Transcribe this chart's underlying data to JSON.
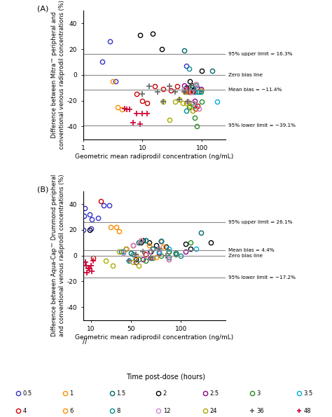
{
  "panel_A": {
    "ylabel": "Difference between Mitra™ peripheral and\nconventional venous radiprodil concentrations (%)",
    "xlabel": "Geometric mean radiprodil concentration (ng/mL)",
    "ylim": [
      -50,
      50
    ],
    "upper_limit": 16.3,
    "lower_limit": -39.1,
    "mean_bias": -11.4,
    "upper_label": "95% upper limit = 16.3%",
    "lower_label": "95% lower limit = −39.1%",
    "mean_label": "Mean bias = −11.4%",
    "zero_label": "Zero bias line",
    "yticks": [
      -40,
      -20,
      0,
      20,
      40
    ]
  },
  "panel_B": {
    "ylabel": "Difference between Aqua-Cap™ Drummond peripheral\nand conventional venous radiprodil concentrations (%)",
    "xlabel": "Geometric mean radiprodil concentration (ng/mL)",
    "ylim": [
      -50,
      50
    ],
    "upper_limit": 26.1,
    "lower_limit": -17.2,
    "mean_bias": 4.4,
    "upper_label": "95% upper limit = 26.1%",
    "lower_label": "95% lower limit = −17.2%",
    "mean_label": "Mean bias = 4.4%",
    "zero_label": "Zero bias line",
    "yticks": [
      -40,
      -20,
      0,
      20,
      40
    ],
    "xticks": [
      10,
      50,
      100
    ]
  },
  "time_colors": {
    "0.5": "#3333cc",
    "1": "#ff8c00",
    "1.5": "#006666",
    "2": "#000000",
    "2.5": "#8b008b",
    "3": "#228b22",
    "3.5": "#00aadd",
    "4": "#cc0000",
    "6": "#ff8c00",
    "8": "#008b8b",
    "12": "#cc88cc",
    "24": "#aaaa00",
    "36": "#666666",
    "48": "#cc0033"
  },
  "legend_title": "Time post-dose (hours)",
  "panel_A_scatter": [
    {
      "t": "0.5",
      "x": [
        2.1,
        2.8,
        3.5
      ],
      "y": [
        10,
        26,
        -5
      ]
    },
    {
      "t": "1",
      "x": [
        3.2,
        3.8,
        4.5
      ],
      "y": [
        -5,
        -25,
        -27
      ]
    },
    {
      "t": "0.5",
      "x": [
        55
      ],
      "y": [
        7
      ]
    },
    {
      "t": "1.5",
      "x": [
        50,
        150
      ],
      "y": [
        19,
        3
      ]
    },
    {
      "t": "2",
      "x": [
        9.0,
        15,
        21,
        55,
        62,
        68,
        72,
        100
      ],
      "y": [
        31,
        32,
        20,
        -10,
        -5,
        -8,
        -12,
        3
      ]
    },
    {
      "t": "2.5",
      "x": [
        50,
        55,
        62,
        75,
        82,
        95
      ],
      "y": [
        -8,
        -12,
        -13,
        -20,
        -10,
        -11
      ]
    },
    {
      "t": "3",
      "x": [
        55,
        60,
        68,
        75,
        82,
        100
      ],
      "y": [
        -13,
        -25,
        -22,
        -33,
        -40,
        -21
      ]
    },
    {
      "t": "3.5",
      "x": [
        75,
        85,
        95,
        180
      ],
      "y": [
        -24,
        -13,
        -12,
        -21
      ]
    },
    {
      "t": "4",
      "x": [
        8,
        10,
        12,
        16,
        22,
        30,
        38,
        55,
        62,
        70,
        78,
        85
      ],
      "y": [
        -15,
        -20,
        -22,
        -9,
        -11,
        -12,
        -9,
        -11,
        -13,
        -13,
        -26,
        -24
      ]
    },
    {
      "t": "6",
      "x": [
        52,
        58,
        65,
        72,
        80,
        88,
        95
      ],
      "y": [
        -13,
        -21,
        -13,
        -22,
        -7,
        -26,
        -12
      ]
    },
    {
      "t": "8",
      "x": [
        50,
        55,
        60,
        68,
        75,
        80,
        88,
        95
      ],
      "y": [
        -11,
        -28,
        5,
        -10,
        -13,
        -8,
        -13,
        -13
      ]
    },
    {
      "t": "12",
      "x": [
        50,
        58,
        65,
        72,
        80,
        88
      ],
      "y": [
        -11,
        -21,
        -13,
        -22,
        -7,
        -26
      ]
    },
    {
      "t": "24",
      "x": [
        22,
        28,
        35,
        42,
        48,
        55,
        62,
        70
      ],
      "y": [
        -21,
        -35,
        -21,
        -19,
        -22,
        -22,
        -24,
        -28
      ]
    },
    {
      "t": "36",
      "x": [
        10,
        13,
        18,
        22,
        28,
        35,
        42,
        50,
        58,
        65
      ],
      "y": [
        -15,
        -9,
        -13,
        -21,
        -9,
        -13,
        -19,
        -13,
        -21,
        -8
      ]
    },
    {
      "t": "48",
      "x": [
        5.0,
        5.5,
        6.0,
        7.0,
        8.0,
        9.0,
        10,
        12
      ],
      "y": [
        -26,
        -27,
        -27,
        -37,
        -30,
        -38,
        -30,
        -30
      ]
    }
  ],
  "panel_B_scatter": [
    {
      "t": "0.5",
      "x": [
        2.5,
        3.0,
        3.5,
        8.5,
        10,
        11,
        17,
        23,
        28
      ],
      "y": [
        20,
        31,
        37,
        32,
        21,
        28,
        29,
        39,
        39
      ]
    },
    {
      "t": "1",
      "x": [
        30,
        35,
        38
      ],
      "y": [
        22,
        22,
        19
      ]
    },
    {
      "t": "1.5",
      "x": [
        40,
        50,
        120
      ],
      "y": [
        3,
        2,
        18
      ]
    },
    {
      "t": "2",
      "x": [
        9,
        55,
        60,
        62,
        65,
        68,
        70,
        75,
        80,
        85,
        105,
        110,
        130
      ],
      "y": [
        20,
        -3,
        10,
        12,
        12,
        10,
        3,
        8,
        11,
        7,
        9,
        5,
        10
      ]
    },
    {
      "t": "2.5",
      "x": [
        55,
        62,
        70,
        78,
        88,
        95,
        105
      ],
      "y": [
        -5,
        -3,
        -2,
        2,
        3,
        2,
        3
      ]
    },
    {
      "t": "3",
      "x": [
        58,
        65,
        72,
        80,
        88,
        95,
        110
      ],
      "y": [
        -3,
        -4,
        -2,
        0,
        3,
        1,
        10
      ]
    },
    {
      "t": "3.5",
      "x": [
        78,
        88,
        95,
        115
      ],
      "y": [
        3,
        5,
        2,
        5
      ]
    },
    {
      "t": "4",
      "x": [
        12,
        20,
        45,
        52,
        58,
        65,
        72,
        80,
        88
      ],
      "y": [
        -2,
        42,
        5,
        8,
        10,
        1,
        5,
        11,
        -3
      ]
    },
    {
      "t": "6",
      "x": [
        55,
        60,
        68,
        75,
        82,
        95
      ],
      "y": [
        0,
        12,
        8,
        -1,
        7,
        2
      ]
    },
    {
      "t": "8",
      "x": [
        42,
        48,
        52,
        58,
        65,
        72,
        80,
        88,
        95,
        100
      ],
      "y": [
        3,
        -4,
        1,
        10,
        12,
        5,
        11,
        -1,
        2,
        0
      ]
    },
    {
      "t": "12",
      "x": [
        42,
        52,
        60,
        68,
        78,
        88
      ],
      "y": [
        2,
        8,
        12,
        3,
        5,
        -3
      ]
    },
    {
      "t": "24",
      "x": [
        25,
        32,
        38,
        45,
        52,
        58
      ],
      "y": [
        -4,
        -8,
        3,
        5,
        -5,
        -8
      ]
    },
    {
      "t": "36",
      "x": [
        48,
        55,
        62,
        70,
        78,
        85
      ],
      "y": [
        -4,
        1,
        3,
        -2,
        5,
        0
      ]
    },
    {
      "t": "48",
      "x": [
        4.5,
        5.0,
        6.0,
        7.0,
        9.0,
        10,
        11,
        12
      ],
      "y": [
        -5,
        -8,
        -13,
        -10,
        -10,
        -8,
        -12,
        -4
      ]
    }
  ],
  "legend_row1": [
    {
      "label": "0.5",
      "color": "#3333cc",
      "marker": "o"
    },
    {
      "label": "1",
      "color": "#ff8c00",
      "marker": "o"
    },
    {
      "label": "1.5",
      "color": "#006666",
      "marker": "o"
    },
    {
      "label": "2",
      "color": "#000000",
      "marker": "o"
    },
    {
      "label": "2.5",
      "color": "#8b008b",
      "marker": "o"
    },
    {
      "label": "3",
      "color": "#228b22",
      "marker": "o"
    },
    {
      "label": "3.5",
      "color": "#00aadd",
      "marker": "o"
    }
  ],
  "legend_row2": [
    {
      "label": "4",
      "color": "#cc0000",
      "marker": "o"
    },
    {
      "label": "6",
      "color": "#ff8c00",
      "marker": "o"
    },
    {
      "label": "8",
      "color": "#008b8b",
      "marker": "o"
    },
    {
      "label": "12",
      "color": "#cc88cc",
      "marker": "o"
    },
    {
      "label": "24",
      "color": "#aaaa00",
      "marker": "o"
    },
    {
      "label": "36",
      "color": "#666666",
      "marker": "+"
    },
    {
      "label": "48",
      "color": "#cc0033",
      "marker": "+"
    }
  ]
}
